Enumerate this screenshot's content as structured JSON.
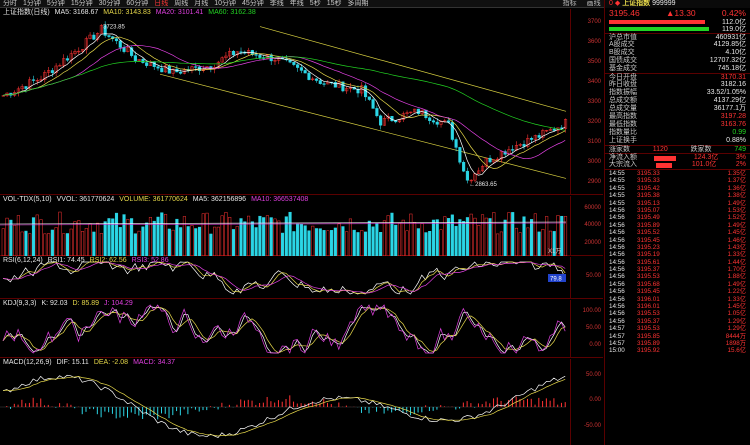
{
  "timeframes": [
    "分时",
    "1分钟",
    "5分钟",
    "15分钟",
    "30分钟",
    "60分钟",
    "日线",
    "周线",
    "月线",
    "10分钟",
    "45分钟",
    "季线",
    "年线",
    "5秒",
    "15秒",
    "多周期"
  ],
  "active_timeframe_index": 6,
  "toolbar": [
    "指标",
    "画线",
    "设置",
    "统计",
    "F10",
    "标记",
    "-自选",
    "返回"
  ],
  "kline": {
    "name": "上证指数(日线)",
    "ma5": "MA5: 3168.67",
    "ma10": "MA10: 3143.83",
    "ma20": "MA20: 3101.41",
    "ma60": "MA60: 3162.38",
    "high_label": "3723.85",
    "low_label": "←2863.65",
    "ticks": [
      "3700",
      "3600",
      "3500",
      "3400",
      "3300",
      "3200",
      "3100",
      "3000",
      "2900"
    ],
    "colors": {
      "ma5": "#ffffff",
      "ma10": "#e6d84a",
      "ma20": "#e040e0",
      "ma60": "#22d322",
      "channel": "#d8d040",
      "up": "#ff3333",
      "down": "#2bd6e6"
    }
  },
  "vol": {
    "title": "VOL-TDX(5,10)",
    "vvol": "VVOL: 361770624",
    "volume": "VOLUME: 361770624",
    "ma5": "MA5: 362156896",
    "ma10": "MA10: 366537408",
    "unit": "X1万",
    "ticks": [
      "60000",
      "40000",
      "20000"
    ]
  },
  "rsi": {
    "title": "RSI(6,12,24)",
    "rsi1": "RSI1: 74.45",
    "rsi2": "RSI2: 62.56",
    "rsi3": "RSI3: 52.86",
    "marker": "79.8",
    "ticks": [
      "50.00"
    ]
  },
  "kdj": {
    "title": "KDJ(9,3,3)",
    "k": "K: 92.03",
    "d": "D: 85.89",
    "j": "J: 104.29",
    "ticks": [
      "100.00",
      "50.00",
      "0.00"
    ]
  },
  "macd": {
    "title": "MACD(12,26,9)",
    "dif": "DIF: 15.11",
    "dea": "DEA: -2.08",
    "macd": "MACD: 34.37",
    "ticks": [
      "50.00",
      "0.00",
      "-50.00"
    ]
  },
  "side": {
    "code": "0 ◆",
    "name": "上证指数",
    "code_num": "999999",
    "price": "3195.46",
    "change": "▲13.30",
    "pct": "0.42%",
    "bar_up": "112.0亿",
    "bar_down": "119.0亿",
    "label_sh": "沪总市值",
    "val_sh": "460931亿",
    "stats": [
      {
        "label": "A股成交",
        "value": "4129.85亿",
        "color": "white"
      },
      {
        "label": "B股成交",
        "value": "4.10亿",
        "color": "white"
      },
      {
        "label": "国债成交",
        "value": "12707.32亿",
        "color": "white"
      },
      {
        "label": "基金成交",
        "value": "745.18亿",
        "color": "white"
      },
      {
        "label": "今日开盘",
        "value": "3170.31",
        "color": "red"
      },
      {
        "label": "昨日收盘",
        "value": "3182.16",
        "color": "white"
      },
      {
        "label": "指数振幅",
        "value": "33.52/1.05%",
        "color": "white"
      },
      {
        "label": "总成交额",
        "value": "4137.29亿",
        "color": "white"
      },
      {
        "label": "总成交量",
        "value": "36177.1万",
        "color": "white"
      },
      {
        "label": "最高指数",
        "value": "3197.28",
        "color": "red"
      },
      {
        "label": "最低指数",
        "value": "3163.76",
        "color": "red"
      },
      {
        "label": "指数量比",
        "value": "0.99",
        "color": "green"
      },
      {
        "label": "上证换手",
        "value": "0.88%",
        "color": "white"
      }
    ],
    "rise_label": "涨家数",
    "rise": "1120",
    "fall_label": "跌家数",
    "fall": "749",
    "flow_in_label": "净流入额",
    "flow_in": "124.3亿",
    "flow_in_pct": "3%",
    "big_label": "大宗流入",
    "big": "101.0亿",
    "big_pct": "2%",
    "ticks": [
      [
        "14:55",
        "3195.33",
        "1.35亿"
      ],
      [
        "14:55",
        "3195.33",
        "1.37亿"
      ],
      [
        "14:55",
        "3195.42",
        "1.36亿"
      ],
      [
        "14:55",
        "3195.38",
        "1.38亿"
      ],
      [
        "14:55",
        "3195.13",
        "1.49亿"
      ],
      [
        "14:56",
        "3195.07",
        "1.53亿"
      ],
      [
        "14:56",
        "3195.49",
        "1.52亿"
      ],
      [
        "14:56",
        "3195.89",
        "1.49亿"
      ],
      [
        "14:56",
        "3195.52",
        "1.45亿"
      ],
      [
        "14:56",
        "3195.45",
        "1.46亿"
      ],
      [
        "14:56",
        "3195.23",
        "1.43亿"
      ],
      [
        "14:56",
        "3195.19",
        "1.33亿"
      ],
      [
        "14:56",
        "3195.61",
        "1.44亿"
      ],
      [
        "14:56",
        "3195.37",
        "1.70亿"
      ],
      [
        "14:56",
        "3195.53",
        "1.88亿"
      ],
      [
        "14:56",
        "3195.68",
        "1.49亿"
      ],
      [
        "14:56",
        "3195.45",
        "1.22亿"
      ],
      [
        "14:56",
        "3196.01",
        "1.33亿"
      ],
      [
        "14:56",
        "3196.01",
        "1.45亿"
      ],
      [
        "14:56",
        "3195.53",
        "1.05亿"
      ],
      [
        "14:56",
        "3195.37",
        "1.29亿"
      ],
      [
        "14:57",
        "3195.53",
        "1.29亿"
      ],
      [
        "14:57",
        "3195.85",
        "8444万"
      ],
      [
        "14:57",
        "3195.89",
        "1898万"
      ],
      [
        "15:00",
        "3195.92",
        "15.6亿"
      ]
    ]
  }
}
